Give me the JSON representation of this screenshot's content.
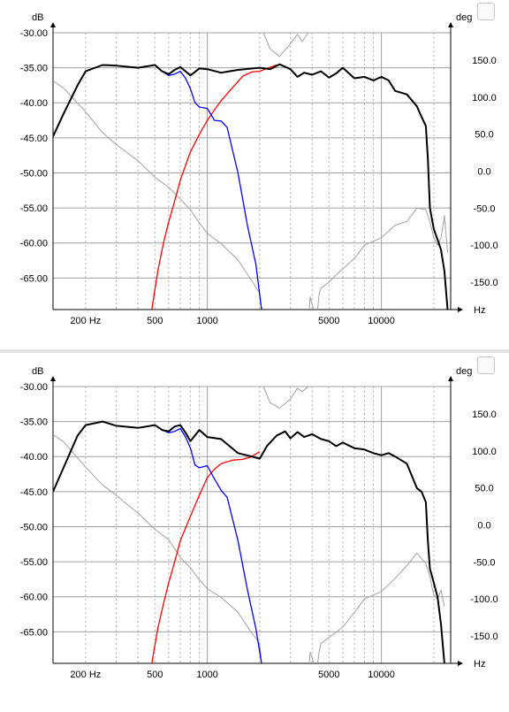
{
  "chart_data": [
    {
      "type": "line",
      "title": "",
      "ylabel": "dB",
      "y2label": "deg",
      "xlabel": "Hz",
      "xscale": "log",
      "xlim": [
        130,
        25000
      ],
      "ylim": [
        -69.5,
        -30
      ],
      "y2lim": [
        -187,
        187
      ],
      "grid": true,
      "yticks": [
        "-30.00",
        "-35.00",
        "-40.00",
        "-45.00",
        "-50.00",
        "-55.00",
        "-60.00",
        "-65.00"
      ],
      "y2ticks": [
        "150.0",
        "100.0",
        "50.0",
        "0.0",
        "-50.0",
        "-100.0",
        "-150.0"
      ],
      "xticks": [
        "200 Hz",
        "500",
        "1000",
        "5000",
        "10000"
      ],
      "colors": {
        "total": "#000000",
        "woofer": "#0000ff",
        "tweeter": "#ff0000",
        "phase": "#a0a0a0"
      },
      "series": [
        {
          "key": "total",
          "x": [
            130,
            150,
            180,
            200,
            250,
            300,
            400,
            500,
            550,
            600,
            650,
            700,
            750,
            800,
            900,
            1000,
            1200,
            1500,
            2000,
            2300,
            2600,
            3000,
            3300,
            3600,
            4000,
            4500,
            5000,
            5500,
            6000,
            7000,
            8000,
            9000,
            10000,
            11000,
            12000,
            14000,
            16000,
            17000,
            18000,
            18500,
            19000,
            20000,
            21000,
            22000,
            23000,
            24000
          ],
          "y": [
            -44.8,
            -41.5,
            -37.5,
            -35.5,
            -34.6,
            -34.7,
            -35.0,
            -34.6,
            -35.5,
            -35.9,
            -35.3,
            -34.9,
            -35.5,
            -36.1,
            -35.1,
            -35.2,
            -35.7,
            -35.3,
            -35.0,
            -35.2,
            -34.5,
            -35.2,
            -36.3,
            -35.7,
            -36.0,
            -35.5,
            -36.4,
            -35.8,
            -35.0,
            -36.5,
            -36.3,
            -36.8,
            -36.3,
            -36.8,
            -38.3,
            -38.8,
            -40.5,
            -42.0,
            -43.3,
            -48.0,
            -55.0,
            -58.0,
            -59.5,
            -61.0,
            -64.0,
            -69.5
          ]
        },
        {
          "key": "woofer",
          "x": [
            550,
            600,
            650,
            700,
            750,
            800,
            850,
            900,
            1000,
            1100,
            1200,
            1300,
            1500,
            1700,
            1900,
            2050
          ],
          "y": [
            -35.5,
            -36.1,
            -35.9,
            -35.5,
            -36.5,
            -38.0,
            -40.0,
            -40.6,
            -40.8,
            -42.5,
            -42.6,
            -43.5,
            -50.0,
            -57.5,
            -63.0,
            -69.5
          ]
        },
        {
          "key": "tweeter",
          "x": [
            480,
            520,
            560,
            600,
            650,
            700,
            800,
            900,
            1000,
            1100,
            1200,
            1400,
            1600,
            1800,
            2000,
            2200,
            2500
          ],
          "y": [
            -69.5,
            -64.0,
            -60.0,
            -57.0,
            -54.0,
            -51.0,
            -47.0,
            -44.5,
            -42.5,
            -41.0,
            -39.7,
            -37.8,
            -36.2,
            -35.6,
            -35.5,
            -35.1,
            -34.6
          ]
        },
        {
          "key": "phase",
          "x": [
            130,
            150,
            200,
            250,
            300,
            400,
            500,
            600,
            700,
            800,
            900,
            1000,
            1200,
            1500,
            1800,
            2000,
            2050,
            2100,
            2300,
            2600,
            3000,
            3300,
            3500,
            3800,
            3850,
            3900,
            4000,
            4100,
            4200,
            4300,
            4400,
            4500,
            5000,
            5500,
            6000,
            7000,
            8000,
            10000,
            12000,
            14000,
            16000,
            18000,
            19000,
            20000,
            21000,
            22000,
            23000,
            24000
          ],
          "y": [
            122,
            112,
            80,
            52,
            36,
            14,
            -8,
            -22,
            -38,
            -52,
            -70,
            -84,
            -98,
            -120,
            -148,
            -165,
            -187,
            187,
            165,
            155,
            172,
            185,
            175,
            187,
            -187,
            -170,
            -180,
            -187,
            187,
            -187,
            -165,
            -158,
            -150,
            -140,
            -132,
            -118,
            -100,
            -90,
            -73,
            -68,
            -50,
            -52,
            -68,
            -90,
            -100,
            -90,
            -60,
            -110
          ]
        }
      ]
    },
    {
      "type": "line",
      "title": "",
      "ylabel": "dB",
      "y2label": "deg",
      "xlabel": "Hz",
      "xscale": "log",
      "xlim": [
        130,
        25000
      ],
      "ylim": [
        -69.5,
        -30
      ],
      "y2lim": [
        -187,
        187
      ],
      "grid": true,
      "yticks": [
        "-30.00",
        "-35.00",
        "-40.00",
        "-45.00",
        "-50.00",
        "-55.00",
        "-60.00",
        "-65.00"
      ],
      "y2ticks": [
        "150.0",
        "100.0",
        "50.0",
        "0.0",
        "-50.0",
        "-100.0",
        "-150.0"
      ],
      "xticks": [
        "200 Hz",
        "500",
        "1000",
        "5000",
        "10000"
      ],
      "colors": {
        "total": "#000000",
        "woofer": "#0000ff",
        "tweeter": "#ff0000",
        "phase": "#a0a0a0"
      },
      "series": [
        {
          "key": "total",
          "x": [
            130,
            150,
            180,
            200,
            250,
            300,
            400,
            500,
            550,
            600,
            650,
            700,
            750,
            800,
            900,
            1000,
            1200,
            1500,
            1800,
            2000,
            2200,
            2500,
            2800,
            3000,
            3300,
            3600,
            4000,
            4500,
            5000,
            5500,
            6000,
            7000,
            8000,
            9000,
            10000,
            11000,
            12000,
            14000,
            16000,
            17000,
            18000,
            18500,
            19000,
            20000,
            21000,
            22000,
            23000
          ],
          "y": [
            -45.0,
            -41.5,
            -37.0,
            -35.5,
            -35.0,
            -35.6,
            -35.9,
            -35.5,
            -36.2,
            -36.4,
            -35.7,
            -35.5,
            -36.6,
            -37.8,
            -36.2,
            -37.2,
            -37.5,
            -39.5,
            -40.0,
            -40.3,
            -38.5,
            -37.0,
            -36.4,
            -37.4,
            -36.5,
            -37.2,
            -36.8,
            -37.5,
            -37.8,
            -38.5,
            -38.0,
            -38.8,
            -39.0,
            -39.5,
            -39.8,
            -39.5,
            -40.0,
            -41.0,
            -44.5,
            -45.0,
            -46.5,
            -52.0,
            -56.0,
            -58.0,
            -60.0,
            -64.0,
            -69.5
          ]
        },
        {
          "key": "woofer",
          "x": [
            550,
            600,
            650,
            700,
            750,
            800,
            850,
            900,
            1000,
            1100,
            1200,
            1300,
            1500,
            1700,
            1900,
            2050
          ],
          "y": [
            -36.2,
            -36.6,
            -36.4,
            -36.0,
            -37.2,
            -38.8,
            -41.2,
            -41.6,
            -41.3,
            -43.2,
            -44.8,
            -45.8,
            -52.0,
            -59.0,
            -64.5,
            -69.5
          ]
        },
        {
          "key": "tweeter",
          "x": [
            480,
            520,
            560,
            600,
            650,
            700,
            800,
            900,
            1000,
            1100,
            1200,
            1400,
            1600,
            1800,
            2000
          ],
          "y": [
            -69.5,
            -64.5,
            -61.0,
            -58.0,
            -55.0,
            -52.0,
            -48.5,
            -45.5,
            -43.0,
            -41.8,
            -41.0,
            -40.5,
            -40.4,
            -40.0,
            -39.3
          ]
        },
        {
          "key": "phase",
          "x": [
            130,
            150,
            200,
            250,
            300,
            400,
            500,
            600,
            700,
            800,
            900,
            1000,
            1200,
            1500,
            1800,
            2000,
            2050,
            2100,
            2300,
            2600,
            3000,
            3300,
            3500,
            3800,
            3850,
            3900,
            4000,
            4100,
            4200,
            4300,
            4400,
            4500,
            5000,
            5500,
            6000,
            7000,
            8000,
            10000,
            12000,
            14000,
            16000,
            18000,
            19000,
            20000,
            21000,
            22000,
            23000
          ],
          "y": [
            122,
            112,
            78,
            54,
            40,
            16,
            -6,
            -20,
            -44,
            -58,
            -74,
            -86,
            -98,
            -118,
            -146,
            -160,
            -187,
            187,
            165,
            158,
            170,
            185,
            180,
            187,
            -187,
            -172,
            -180,
            -187,
            187,
            -187,
            -170,
            -160,
            -152,
            -145,
            -138,
            -118,
            -100,
            -90,
            -72,
            -55,
            -38,
            -52,
            -70,
            -95,
            -100,
            -88,
            -110
          ]
        }
      ]
    }
  ]
}
